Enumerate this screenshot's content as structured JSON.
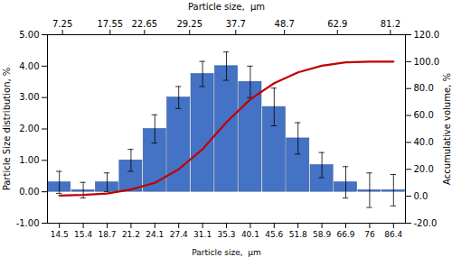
{
  "chart_data": {
    "type": "bar",
    "categories": [
      "14.5",
      "15.4",
      "18.7",
      "21.2",
      "24.1",
      "27.4",
      "31.1",
      "35.3",
      "40.1",
      "45.6",
      "51.8",
      "58.9",
      "66.9",
      "76",
      "86.4"
    ],
    "series": [
      {
        "type": "bar",
        "color": "#4472C4",
        "values": [
          0.3,
          0.05,
          0.3,
          1.0,
          2.0,
          3.0,
          3.75,
          4.0,
          3.5,
          2.7,
          1.7,
          0.85,
          0.3,
          0.05,
          0.05
        ],
        "errors": [
          0.35,
          0.25,
          0.3,
          0.35,
          0.45,
          0.35,
          0.4,
          0.45,
          0.5,
          0.6,
          0.5,
          0.4,
          0.5,
          0.55,
          0.5
        ]
      },
      {
        "type": "line",
        "color": "#C00000",
        "axis": "y2",
        "values": [
          0.5,
          1.0,
          2.0,
          5.0,
          10.0,
          20.0,
          35.0,
          55.0,
          72.0,
          84.0,
          92.0,
          97.0,
          99.5,
          100.0,
          100.0
        ]
      }
    ],
    "xlabel": "Particle size,  μm",
    "x2label": "Particle size,  μm",
    "ylabel": "Particle Size distribution, %",
    "y2label": "Accumulative volume, %",
    "ylim": [
      -1.0,
      5.0
    ],
    "yticks": [
      {
        "value": -1,
        "label": "-1.00"
      },
      {
        "value": 0,
        "label": "0.00"
      },
      {
        "value": 1,
        "label": "1.00"
      },
      {
        "value": 2,
        "label": "2.00"
      },
      {
        "value": 3,
        "label": "3.00"
      },
      {
        "value": 4,
        "label": "4.00"
      },
      {
        "value": 5,
        "label": "5.00"
      }
    ],
    "y2lim": [
      -20.0,
      120.0
    ],
    "y2ticks": [
      {
        "value": -20,
        "label": "-20.0"
      },
      {
        "value": 0,
        "label": "0.0"
      },
      {
        "value": 20,
        "label": "20.0"
      },
      {
        "value": 40,
        "label": "40.0"
      },
      {
        "value": 60,
        "label": "60.0"
      },
      {
        "value": 80,
        "label": "80.0"
      },
      {
        "value": 100,
        "label": "100.0"
      },
      {
        "value": 120,
        "label": "120.0"
      }
    ],
    "x2lim": [
      0,
      1
    ],
    "x2ticks": [
      {
        "value": 0.042,
        "label": "7.25"
      },
      {
        "value": 0.175,
        "label": "17.55"
      },
      {
        "value": 0.271,
        "label": "22.65"
      },
      {
        "value": 0.397,
        "label": "29.25"
      },
      {
        "value": 0.526,
        "label": "37.7"
      },
      {
        "value": 0.662,
        "label": "48.7"
      },
      {
        "value": 0.81,
        "label": "62.9"
      },
      {
        "value": 0.958,
        "label": "81.2"
      }
    ],
    "grid": false
  }
}
